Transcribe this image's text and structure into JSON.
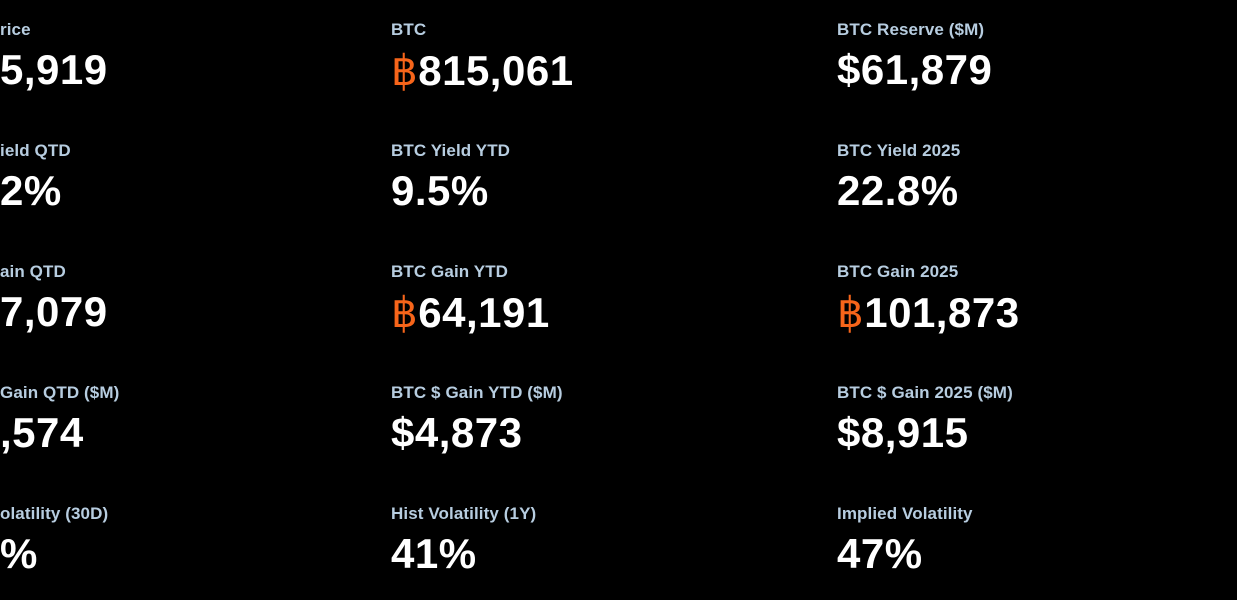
{
  "colors": {
    "background": "#000000",
    "label": "#b7cde0",
    "value": "#ffffff",
    "btc_symbol": "#f7651a"
  },
  "btc_symbol": "฿",
  "columns": [
    [
      {
        "label": "rice",
        "value": "5,919"
      },
      {
        "label": "ield QTD",
        "value": "2%"
      },
      {
        "label": "ain QTD",
        "value": "7,079"
      },
      {
        "label": " Gain QTD ($M)",
        "value": ",574"
      },
      {
        "label": "olatility (30D)",
        "value": "%"
      }
    ],
    [
      {
        "label": "BTC",
        "value": "815,061",
        "btc": true
      },
      {
        "label": "BTC Yield YTD",
        "value": "9.5%"
      },
      {
        "label": "BTC Gain YTD",
        "value": "64,191",
        "btc": true
      },
      {
        "label": "BTC $ Gain YTD ($M)",
        "value": "$4,873"
      },
      {
        "label": "Hist Volatility (1Y)",
        "value": "41%"
      }
    ],
    [
      {
        "label": "BTC Reserve ($M)",
        "value": "$61,879"
      },
      {
        "label": "BTC Yield 2025",
        "value": "22.8%"
      },
      {
        "label": "BTC Gain 2025",
        "value": "101,873",
        "btc": true
      },
      {
        "label": "BTC $ Gain 2025 ($M)",
        "value": "$8,915"
      },
      {
        "label": "Implied Volatility",
        "value": "47%"
      }
    ]
  ]
}
